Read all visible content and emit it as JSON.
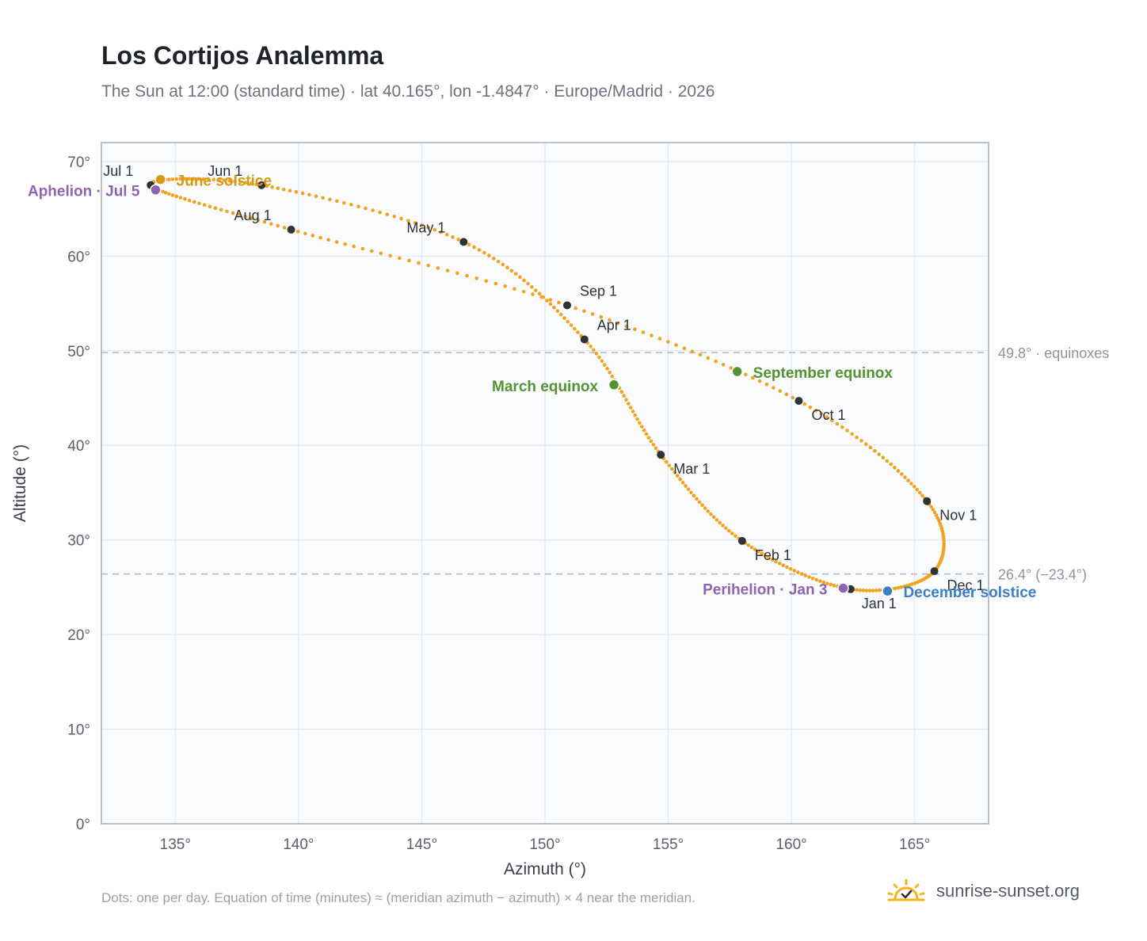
{
  "header": {
    "title": "Los Cortijos Analemma",
    "subtitle": "The Sun at 12:00 (standard time) · lat 40.165°, lon -1.4847° · Europe/Madrid · 2026"
  },
  "footer": {
    "note": "Dots: one per day. Equation of time (minutes) ≈ (meridian azimuth − azimuth) × 4 near the meridian.",
    "brand": "sunrise-sunset.org",
    "brand_icon": "sun-check-icon",
    "brand_color": "#f3b51b"
  },
  "colors": {
    "curve": "#f2a21e",
    "month_marker": "#2f3237",
    "june_solstice": "#d79a14",
    "december_solstice": "#3b7fc4",
    "equinox": "#559232",
    "apsis": "#8e63b0",
    "reference_line": "#b9c4cf",
    "plot_bg": "#f9fbfd",
    "grid": "#e3e8ee"
  },
  "chart_data": {
    "type": "scatter",
    "title": "Los Cortijos Analemma",
    "xlabel": "Azimuth (°)",
    "ylabel": "Altitude (°)",
    "xlim": [
      132,
      168
    ],
    "ylim": [
      0,
      72
    ],
    "x_ticks": [
      135,
      140,
      145,
      150,
      155,
      160,
      165
    ],
    "x_tick_labels": [
      "135°",
      "140°",
      "145°",
      "150°",
      "155°",
      "160°",
      "165°"
    ],
    "y_ticks": [
      0,
      10,
      20,
      30,
      40,
      50,
      60,
      70
    ],
    "y_tick_labels": [
      "0°",
      "10°",
      "20°",
      "30°",
      "40°",
      "50°",
      "60°",
      "70°"
    ],
    "grid": true,
    "series": [
      {
        "points_per_day": true,
        "points": [
          {
            "date": "Jan 1",
            "x": 162.4,
            "y": 24.8
          },
          {
            "date": "Feb 1",
            "x": 158.0,
            "y": 29.9
          },
          {
            "date": "Mar 1",
            "x": 154.7,
            "y": 39.0
          },
          {
            "date": "Apr 1",
            "x": 151.6,
            "y": 51.2
          },
          {
            "date": "May 1",
            "x": 146.7,
            "y": 61.5
          },
          {
            "date": "Jun 1",
            "x": 138.5,
            "y": 67.5
          },
          {
            "date": "Jul 1",
            "x": 134.0,
            "y": 67.5
          },
          {
            "date": "Aug 1",
            "x": 139.7,
            "y": 62.8
          },
          {
            "date": "Sep 1",
            "x": 150.9,
            "y": 54.8
          },
          {
            "date": "Oct 1",
            "x": 160.3,
            "y": 44.7
          },
          {
            "date": "Nov 1",
            "x": 165.5,
            "y": 34.1
          },
          {
            "date": "Dec 1",
            "x": 165.8,
            "y": 26.7
          }
        ]
      }
    ],
    "month_labels": [
      "Jan 1",
      "Feb 1",
      "Mar 1",
      "Apr 1",
      "May 1",
      "Jun 1",
      "Jul 1",
      "Aug 1",
      "Sep 1",
      "Oct 1",
      "Nov 1",
      "Dec 1"
    ],
    "events": [
      {
        "label": "June solstice",
        "x": 134.4,
        "y": 68.1,
        "color": "#d79a14"
      },
      {
        "label": "December solstice",
        "x": 163.9,
        "y": 24.6,
        "color": "#3b7fc4"
      },
      {
        "label": "March equinox",
        "x": 152.8,
        "y": 46.4,
        "color": "#559232"
      },
      {
        "label": "September equinox",
        "x": 157.8,
        "y": 47.8,
        "color": "#559232"
      },
      {
        "label": "Aphelion · Jul 5",
        "x": 134.2,
        "y": 67.0,
        "color": "#8e63b0"
      },
      {
        "label": "Perihelion · Jan 3",
        "x": 162.1,
        "y": 24.9,
        "color": "#8e63b0"
      }
    ],
    "reference_lines": [
      {
        "y": 49.8,
        "label": "49.8° · equinoxes"
      },
      {
        "y": 26.4,
        "label": "26.4° (−23.4°)"
      }
    ]
  }
}
